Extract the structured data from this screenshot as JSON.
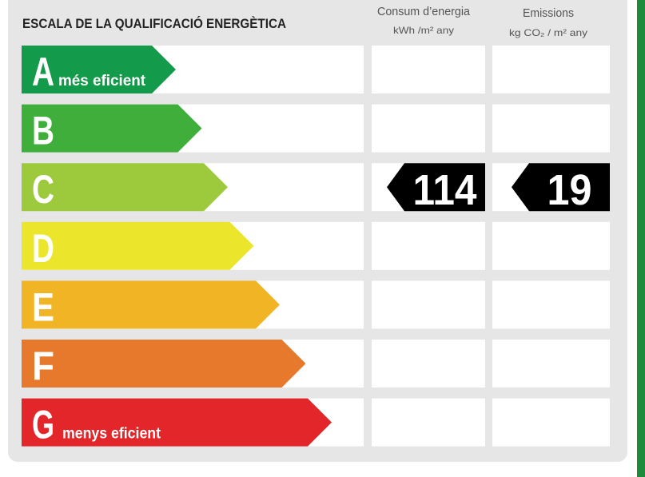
{
  "header": {
    "title": "ESCALA DE LA QUALIFICACIÓ ENERGÈTICA",
    "columns": [
      {
        "label": "Consum d’energia",
        "unit": "kWh /m² any"
      },
      {
        "label": "Emissions",
        "unit": "kg CO₂ / m² any"
      }
    ]
  },
  "rows": [
    {
      "letter": "A",
      "note": "més eficient",
      "color": "#149a4b"
    },
    {
      "letter": "B",
      "color": "#3fae3b"
    },
    {
      "letter": "C",
      "color": "#9dc93d",
      "consumption": 114,
      "emissions": 19
    },
    {
      "letter": "D",
      "color": "#ebe52c"
    },
    {
      "letter": "E",
      "color": "#f0b424"
    },
    {
      "letter": "F",
      "color": "#e6792c"
    },
    {
      "letter": "G",
      "note": "menys eficient",
      "color": "#e2262a"
    }
  ]
}
